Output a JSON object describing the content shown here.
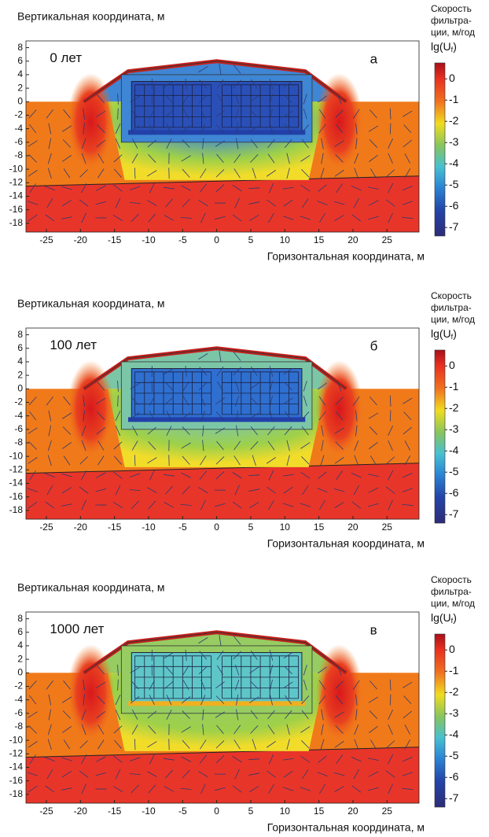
{
  "chart_data": [
    {
      "type": "heatmap",
      "ylabel": "Вертикальная координата, м",
      "xlabel": "Горизонтальная координата, м",
      "time_label": "0 лет",
      "panel_label": "а",
      "field_color": "#3f86d4",
      "inner_color": "#2a50b8",
      "xlim": [
        -28,
        29.7
      ],
      "ylim": [
        -19.3,
        9
      ],
      "xticks": [
        -25,
        -20,
        -15,
        -10,
        -5,
        0,
        5,
        10,
        15,
        20,
        25
      ],
      "yticks": [
        8,
        6,
        4,
        2,
        0,
        -2,
        -4,
        -6,
        -8,
        -10,
        -12,
        -14,
        -16,
        -18
      ],
      "colorbar": {
        "title": [
          "Скорость",
          "фильтра-",
          "ции, м/год"
        ],
        "label": [
          "lg(U",
          "f",
          ")"
        ],
        "lim": [
          -7.4,
          0.75
        ],
        "ticks": [
          0,
          -1,
          -2,
          -3,
          -4,
          -5,
          -6,
          -7
        ]
      }
    },
    {
      "type": "heatmap",
      "ylabel": "Вертикальная координата, м",
      "xlabel": "Горизонтальная координата, м",
      "time_label": "100 лет",
      "panel_label": "б",
      "field_color": "#7cc6a8",
      "inner_color": "#2f6fd0",
      "xlim": [
        -28,
        29.7
      ],
      "ylim": [
        -19.3,
        9
      ],
      "xticks": [
        -25,
        -20,
        -15,
        -10,
        -5,
        0,
        5,
        10,
        15,
        20,
        25
      ],
      "yticks": [
        8,
        6,
        4,
        2,
        0,
        -2,
        -4,
        -6,
        -8,
        -10,
        -12,
        -14,
        -16,
        -18
      ],
      "colorbar": {
        "title": [
          "Скорость",
          "фильтра-",
          "ции, м/год"
        ],
        "label": [
          "lg(U",
          "f",
          ")"
        ],
        "lim": [
          -7.4,
          0.75
        ],
        "ticks": [
          0,
          -1,
          -2,
          -3,
          -4,
          -5,
          -6,
          -7
        ]
      }
    },
    {
      "type": "heatmap",
      "ylabel": "Вертикальная координата, м",
      "xlabel": "Горизонтальная координата, м",
      "time_label": "1000 лет",
      "panel_label": "в",
      "field_color": "#96cc62",
      "inner_color": "#5fc6c8",
      "xlim": [
        -28,
        29.7
      ],
      "ylim": [
        -19.3,
        9
      ],
      "xticks": [
        -25,
        -20,
        -15,
        -10,
        -5,
        0,
        5,
        10,
        15,
        20,
        25
      ],
      "yticks": [
        8,
        6,
        4,
        2,
        0,
        -2,
        -4,
        -6,
        -8,
        -10,
        -12,
        -14,
        -16,
        -18
      ],
      "colorbar": {
        "title": [
          "Скорость",
          "фильтра-",
          "ции, м/год"
        ],
        "label": [
          "lg(U",
          "f",
          ")"
        ],
        "lim": [
          -7.4,
          0.75
        ],
        "ticks": [
          0,
          -1,
          -2,
          -3,
          -4,
          -5,
          -6,
          -7
        ]
      }
    }
  ]
}
